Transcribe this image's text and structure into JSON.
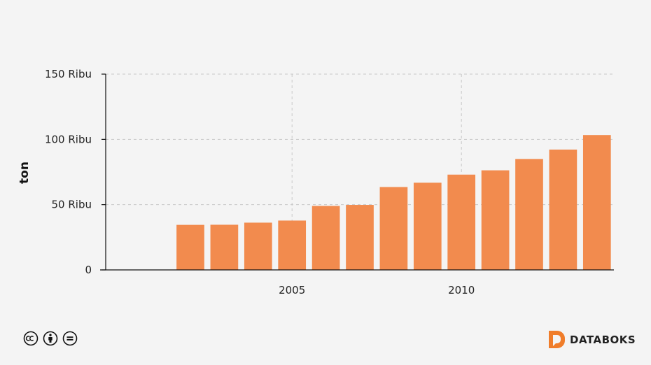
{
  "chart_data": {
    "type": "bar",
    "x": [
      2000,
      2001,
      2002,
      2003,
      2004,
      2005,
      2006,
      2007,
      2008,
      2009,
      2010,
      2011,
      2012,
      2013,
      2014
    ],
    "values": [
      0,
      0,
      34500,
      34600,
      36200,
      37800,
      49000,
      49800,
      63500,
      66800,
      73000,
      76300,
      85000,
      92200,
      103300
    ],
    "ylabel": "ton",
    "xlabel": "",
    "ylim": [
      0,
      150000
    ],
    "y_ticks": [
      0,
      50000,
      100000,
      150000
    ],
    "y_tick_labels": [
      "0",
      "50 Ribu",
      "100 Ribu",
      "150 Ribu"
    ],
    "x_ticks": [
      2005,
      2010
    ],
    "x_tick_labels": [
      "2005",
      "2010"
    ],
    "grid": true,
    "bar_color": "#f28b4e"
  },
  "brand": {
    "name": "DATABOKS",
    "accent": "#f07d2a"
  },
  "license_icons": [
    "cc-icon",
    "attribution-icon",
    "noderivs-icon"
  ]
}
